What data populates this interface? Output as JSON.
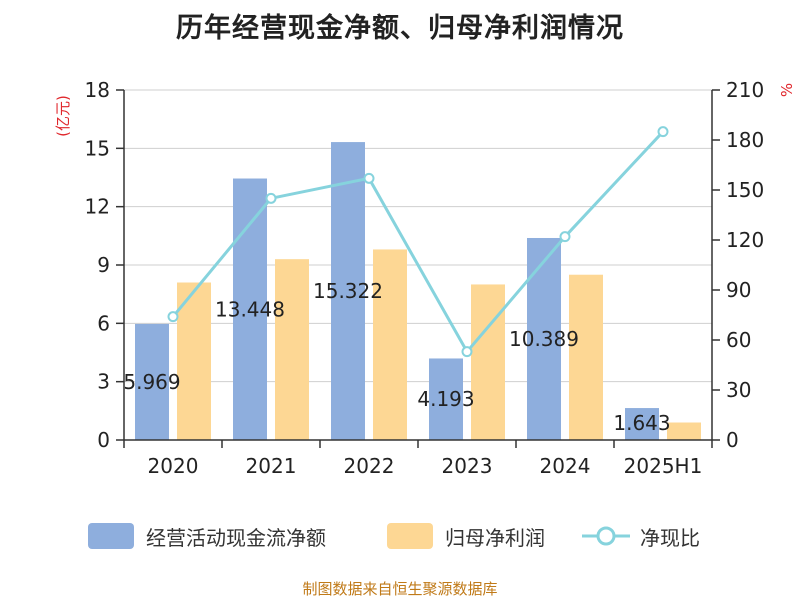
{
  "title": "历年经营现金净额、归母净利润情况",
  "source": "制图数据来自恒生聚源数据库",
  "colors": {
    "ocf": "#8eaedd",
    "profit": "#fdd794",
    "ratio": "#86d3dd",
    "y2_unit": "#e0262b",
    "axis": "#333333",
    "grid": "#cfcfcf"
  },
  "chart_data": {
    "type": "bar",
    "categories": [
      "2020",
      "2021",
      "2022",
      "2023",
      "2024",
      "2025H1"
    ],
    "series": [
      {
        "name": "经营活动现金流净额",
        "type": "bar",
        "axis": "left",
        "values": [
          5.969,
          13.448,
          15.322,
          4.193,
          10.389,
          1.643
        ]
      },
      {
        "name": "归母净利润",
        "type": "bar",
        "axis": "left",
        "values": [
          8.1,
          9.3,
          9.8,
          8.0,
          8.5,
          0.9
        ]
      },
      {
        "name": "净现比",
        "type": "line",
        "axis": "right",
        "values": [
          74,
          145,
          157,
          53,
          122,
          185
        ]
      }
    ],
    "data_labels": [
      "5.969",
      "13.448",
      "15.322",
      "4.193",
      "10.389",
      "1.643"
    ],
    "ylabel": "(亿元)",
    "ylim": [
      0,
      18
    ],
    "yticks": [
      0,
      3,
      6,
      9,
      12,
      15,
      18
    ],
    "y2label": "%",
    "y2lim": [
      0,
      210
    ],
    "y2ticks": [
      0,
      30,
      60,
      90,
      120,
      150,
      180,
      210
    ],
    "grid": true,
    "legend": "bottom"
  }
}
